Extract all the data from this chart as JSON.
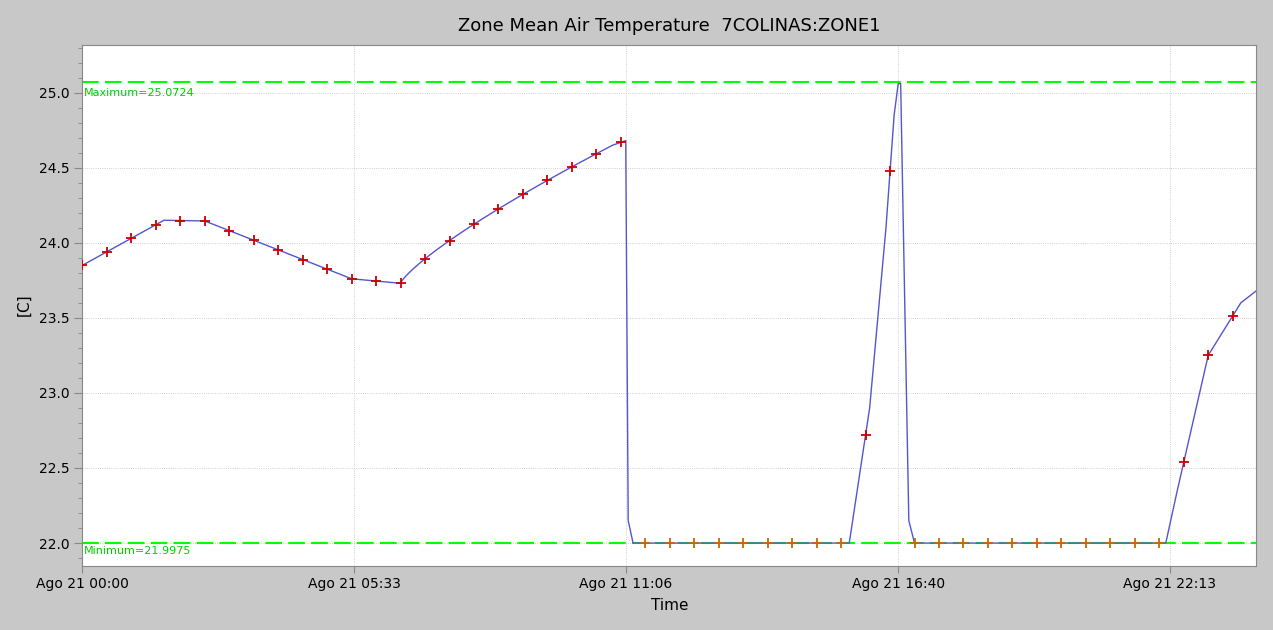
{
  "title": "Zone Mean Air Temperature  7COLINAS:ZONE1",
  "xlabel": "Time",
  "ylabel": "[C]",
  "max_val": 25.0724,
  "min_val": 21.9975,
  "ylim": [
    21.85,
    25.32
  ],
  "fig_bg_color": "#c8c8c8",
  "plot_bg_color": "#ffffff",
  "line_color": "#5555cc",
  "marker_color_curve": "#cc0000",
  "marker_color_flat": "#cc6600",
  "hline_color": "#00ff00",
  "hline_label_color": "#00cc00",
  "grid_color": "#c0c0c0",
  "tick_labels": [
    "Ago 21 00:00",
    "Ago 21 05:33",
    "Ago 21 11:06",
    "Ago 21 16:40",
    "Ago 21 22:13"
  ],
  "tick_positions": [
    0,
    333,
    666,
    1000,
    1333
  ],
  "total_minutes": 1439,
  "yticks": [
    22.0,
    22.5,
    23.0,
    23.5,
    24.0,
    24.5,
    25.0
  ]
}
